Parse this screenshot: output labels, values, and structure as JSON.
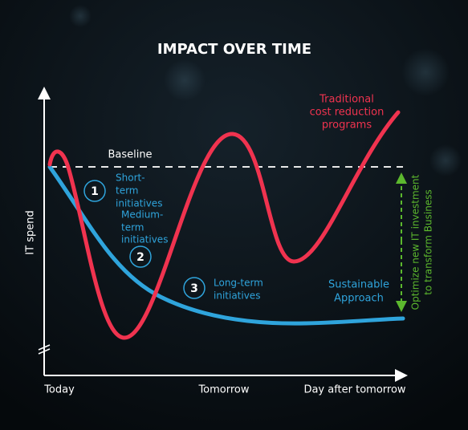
{
  "title": "IMPACT OVER TIME",
  "y_axis_label": "IT spend",
  "x_axis_labels": [
    "Today",
    "Tomorrow",
    "Day after tomorrow"
  ],
  "baseline_label": "Baseline",
  "traditional_label": [
    "Traditional",
    "cost reduction",
    "programs"
  ],
  "sustainable_label": [
    "Sustainable",
    "Approach"
  ],
  "markers": [
    {
      "number": "1",
      "lines": [
        "Short-",
        "term",
        "initiatives"
      ]
    },
    {
      "number": "2",
      "lines": [
        "Medium-",
        "term",
        "initiatives"
      ]
    },
    {
      "number": "3",
      "lines": [
        "Long-term",
        "initiatives"
      ]
    }
  ],
  "investment_label": [
    "Optimize new IT investment",
    "to transform  Business"
  ]
}
